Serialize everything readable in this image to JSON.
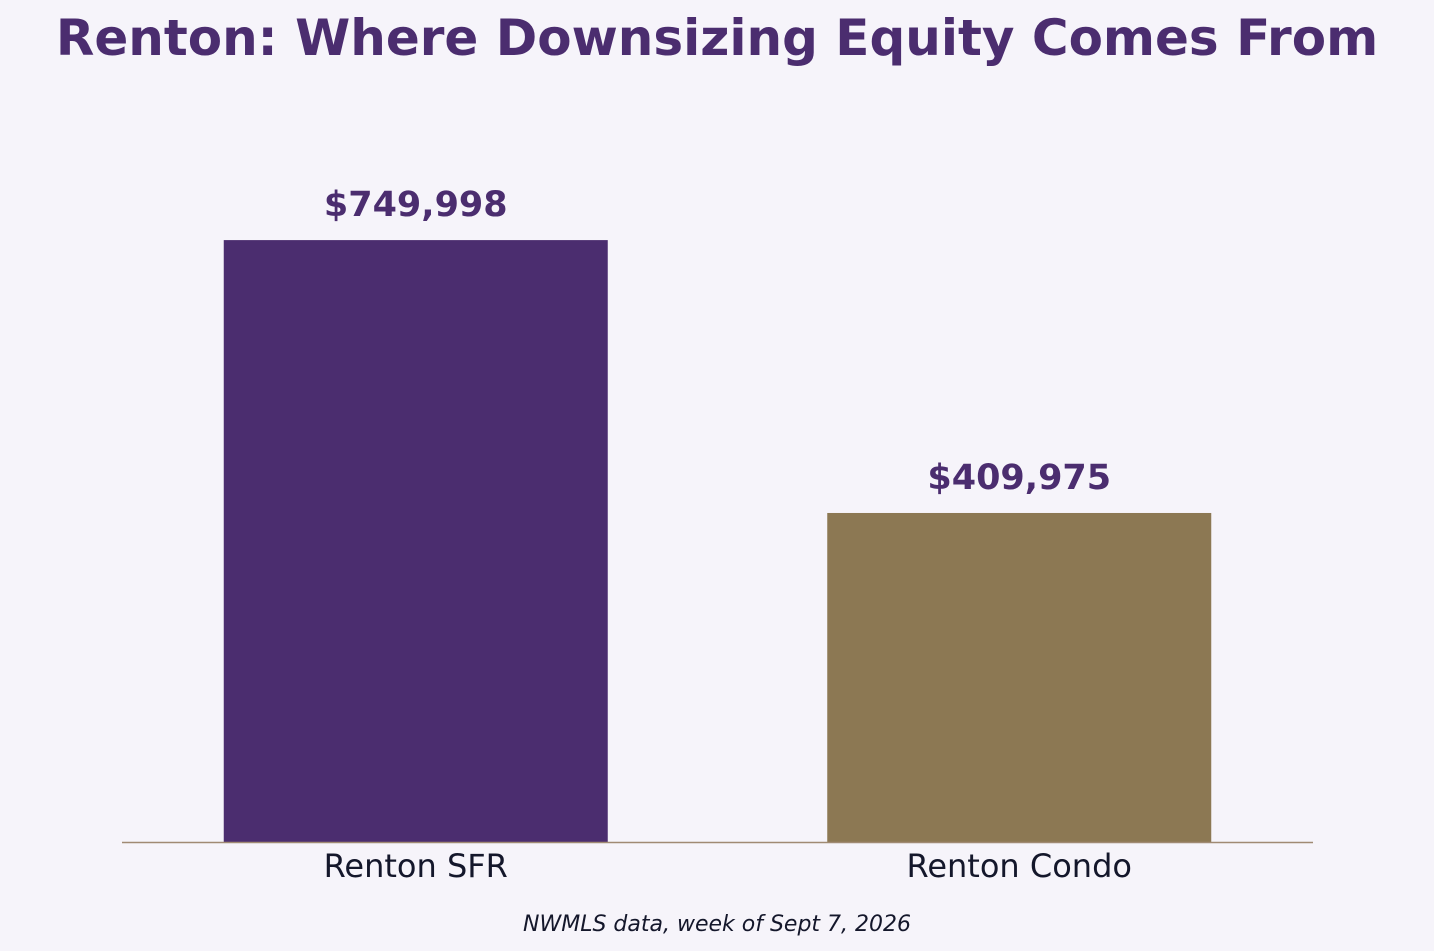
{
  "chart_data": {
    "type": "bar",
    "title": "Renton: Where Downsizing Equity Comes From",
    "caption": "NWMLS data, week of Sept 7, 2026",
    "categories": [
      "Renton SFR",
      "Renton Condo"
    ],
    "values": [
      749998,
      409975
    ],
    "value_labels": [
      "$749,998",
      "$409,975"
    ],
    "bar_colors": [
      "#4b2d6f",
      "#8c7853"
    ],
    "value_label_color": "#4b2d6f",
    "tick_label_color": "#14172b",
    "axis_color": "#a08a73",
    "ylim": [
      0,
      787500
    ],
    "xlabel": "",
    "ylabel": "",
    "grid": false,
    "y_axis_visible": false
  }
}
